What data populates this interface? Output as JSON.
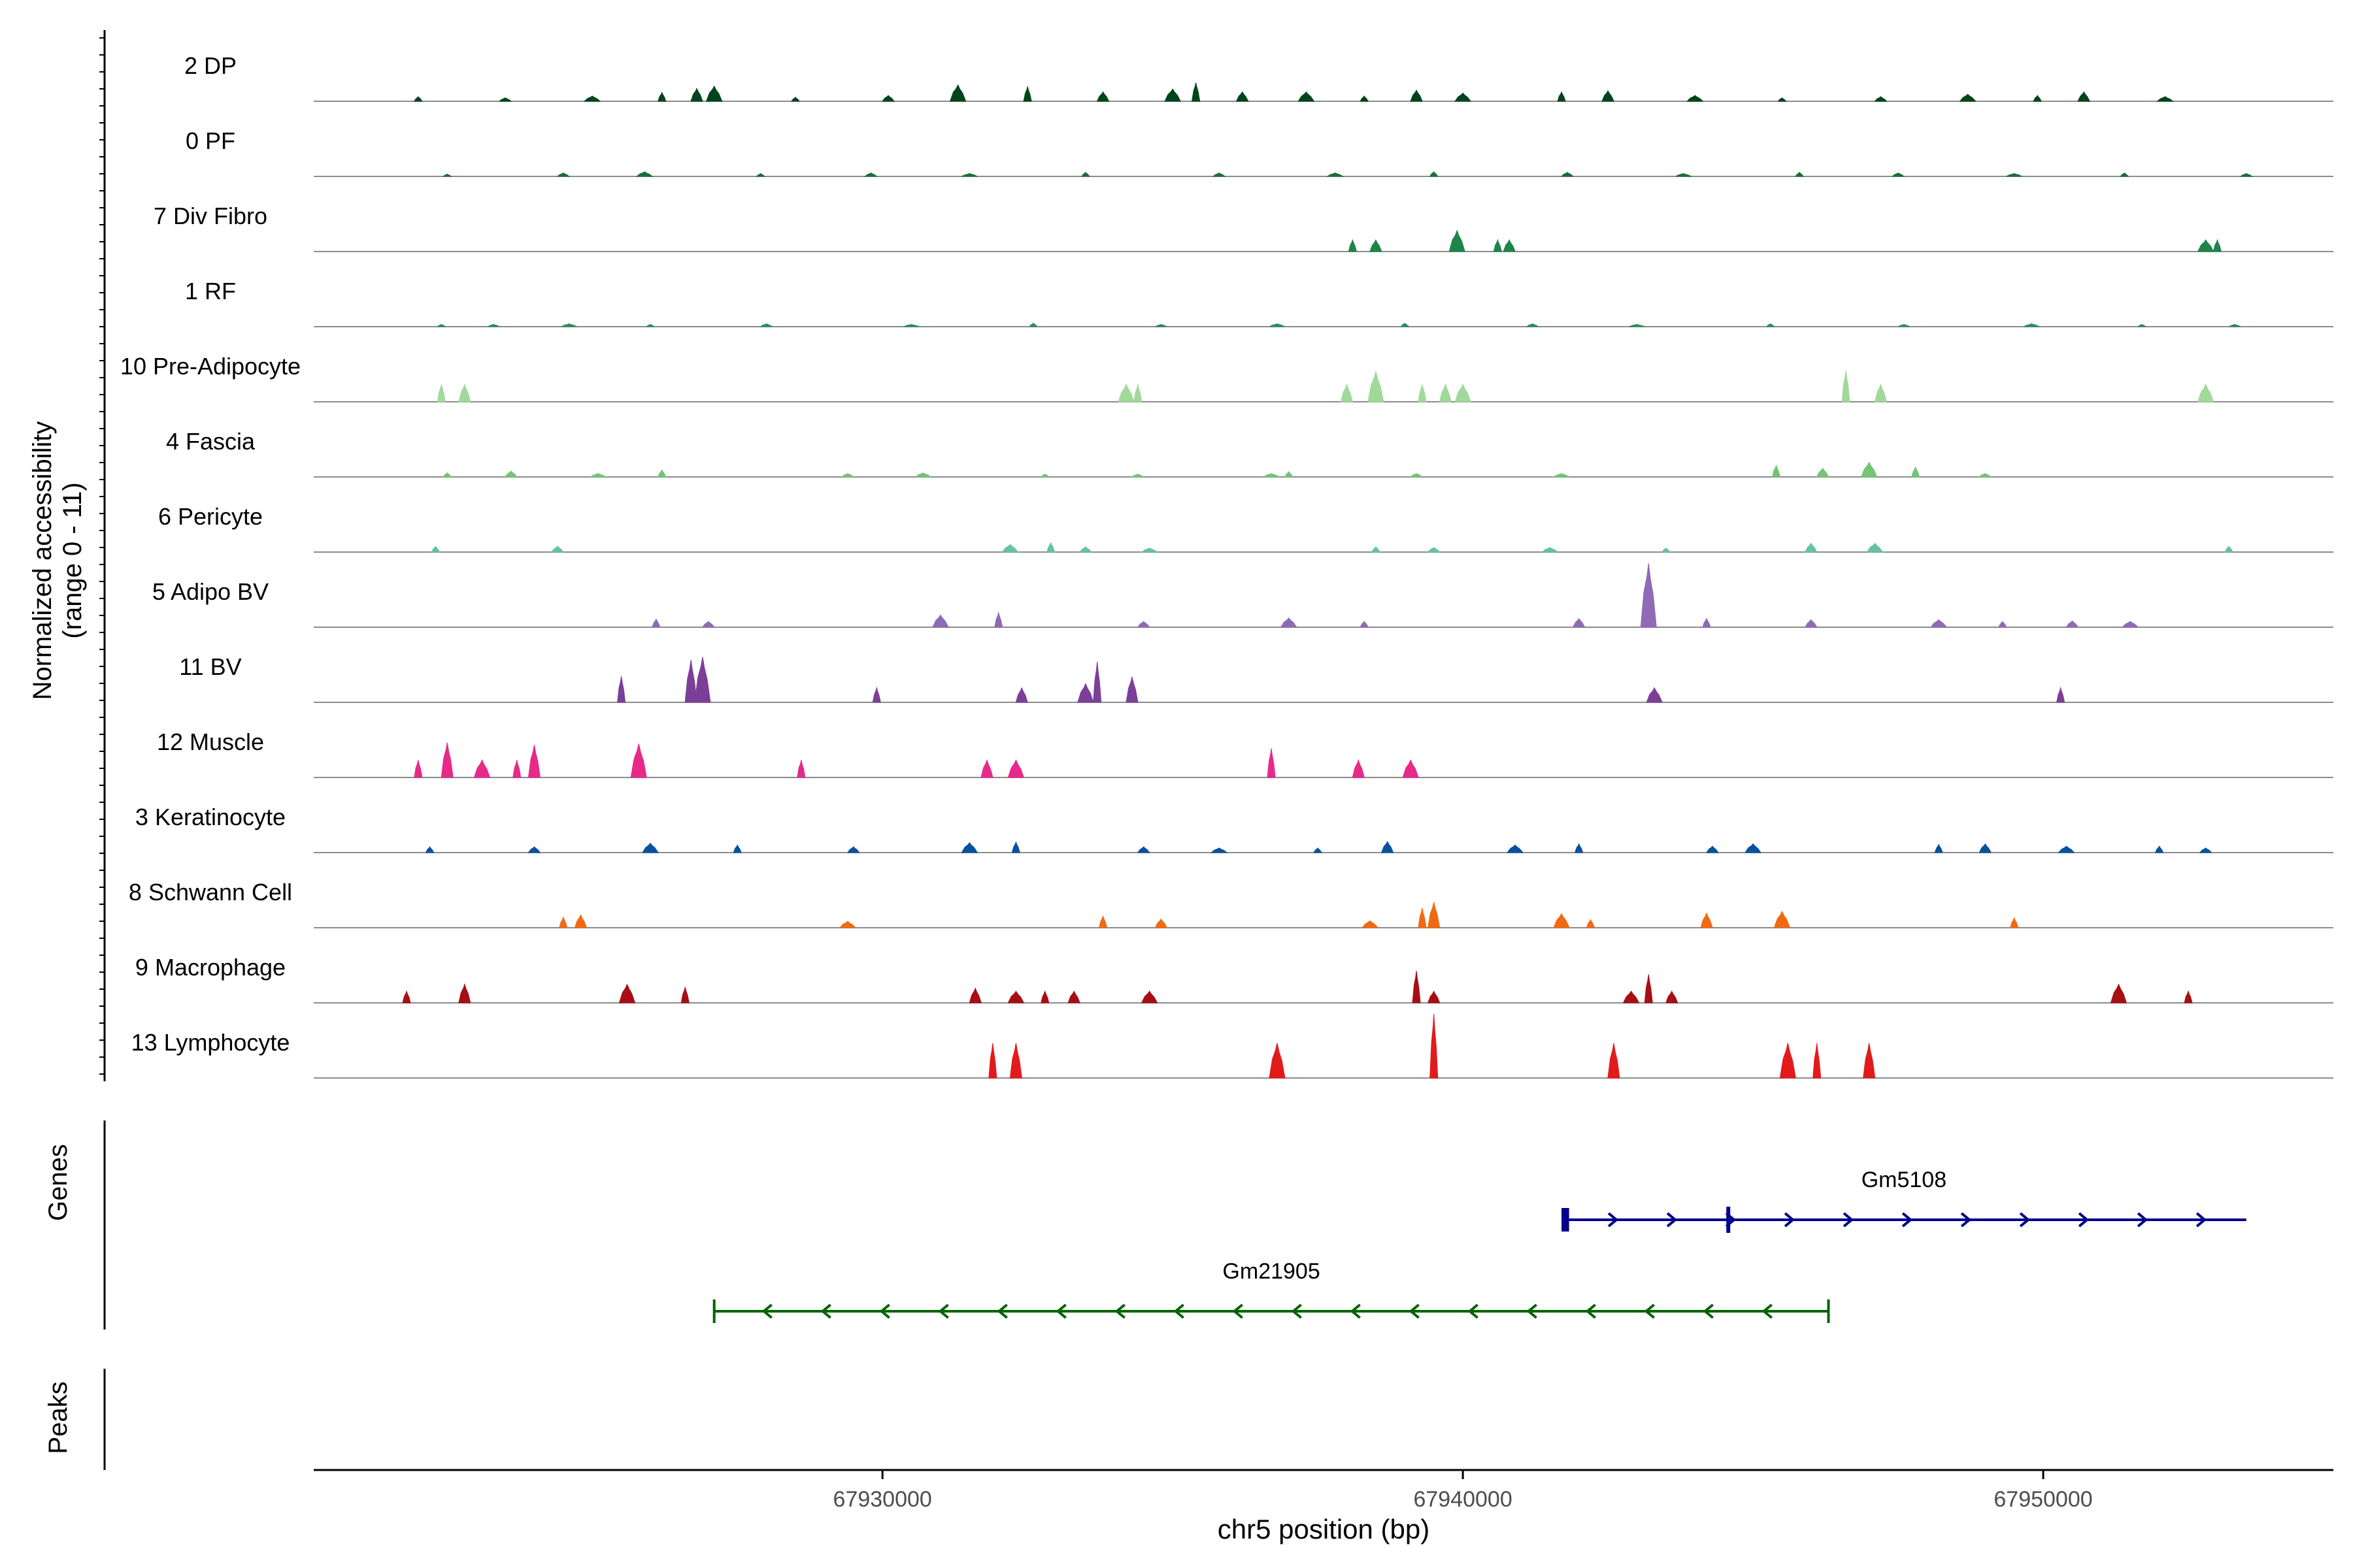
{
  "chart_data": {
    "type": "area",
    "title": "",
    "xlabel": "chr5 position (bp)",
    "ylabel_line1": "Normalized accessibility",
    "ylabel_line2": "(range 0 - 11)",
    "y_range": [
      0,
      11
    ],
    "xlim": [
      67920200,
      67955000
    ],
    "xticks": [
      67930000,
      67940000,
      67950000
    ],
    "xtick_labels": [
      "67930000",
      "67940000",
      "67950000"
    ],
    "tracks": [
      {
        "name": "2 DP",
        "color": "#00441B",
        "peaks": [
          [
            67922000,
            0.8
          ],
          [
            67923500,
            0.6
          ],
          [
            67925000,
            0.9
          ],
          [
            67926200,
            1.5
          ],
          [
            67926800,
            2.2
          ],
          [
            67927100,
            2.6
          ],
          [
            67928500,
            0.7
          ],
          [
            67930100,
            1.0
          ],
          [
            67931300,
            2.8
          ],
          [
            67932500,
            2.5
          ],
          [
            67933800,
            1.6
          ],
          [
            67935000,
            2.1
          ],
          [
            67935400,
            3.2
          ],
          [
            67936200,
            1.6
          ],
          [
            67937300,
            1.6
          ],
          [
            67938300,
            0.9
          ],
          [
            67939200,
            1.9
          ],
          [
            67940000,
            1.4
          ],
          [
            67941700,
            1.6
          ],
          [
            67942500,
            1.8
          ],
          [
            67944000,
            1.0
          ],
          [
            67945500,
            0.6
          ],
          [
            67947200,
            0.8
          ],
          [
            67948700,
            1.2
          ],
          [
            67949900,
            1.0
          ],
          [
            67950700,
            1.6
          ],
          [
            67952100,
            0.8
          ]
        ]
      },
      {
        "name": "0 PF",
        "color": "#1B6E38",
        "peaks": [
          [
            67922500,
            0.4
          ],
          [
            67924500,
            0.6
          ],
          [
            67925900,
            0.8
          ],
          [
            67927900,
            0.5
          ],
          [
            67929800,
            0.6
          ],
          [
            67931500,
            0.5
          ],
          [
            67933500,
            0.7
          ],
          [
            67935800,
            0.6
          ],
          [
            67937800,
            0.6
          ],
          [
            67939500,
            0.8
          ],
          [
            67941800,
            0.7
          ],
          [
            67943800,
            0.5
          ],
          [
            67945800,
            0.7
          ],
          [
            67947500,
            0.6
          ],
          [
            67949500,
            0.5
          ],
          [
            67951400,
            0.6
          ],
          [
            67953500,
            0.5
          ]
        ]
      },
      {
        "name": "7 Div Fibro",
        "color": "#1E8449",
        "peaks": [
          [
            67938100,
            2.0
          ],
          [
            67938500,
            2.0
          ],
          [
            67939900,
            3.6
          ],
          [
            67940600,
            2.0
          ],
          [
            67940800,
            2.0
          ],
          [
            67952800,
            2.0
          ],
          [
            67953000,
            2.0
          ]
        ]
      },
      {
        "name": "1 RF",
        "color": "#2E8B57",
        "peaks": [
          [
            67922400,
            0.4
          ],
          [
            67923300,
            0.4
          ],
          [
            67924600,
            0.5
          ],
          [
            67926000,
            0.4
          ],
          [
            67928000,
            0.5
          ],
          [
            67930500,
            0.4
          ],
          [
            67932600,
            0.6
          ],
          [
            67934800,
            0.4
          ],
          [
            67936800,
            0.5
          ],
          [
            67939000,
            0.6
          ],
          [
            67941200,
            0.5
          ],
          [
            67943000,
            0.4
          ],
          [
            67945300,
            0.5
          ],
          [
            67947600,
            0.4
          ],
          [
            67949800,
            0.5
          ],
          [
            67951700,
            0.4
          ],
          [
            67953300,
            0.4
          ]
        ]
      },
      {
        "name": "10 Pre-Adipocyte",
        "color": "#A1D99B",
        "peaks": [
          [
            67922400,
            3.0
          ],
          [
            67922800,
            3.0
          ],
          [
            67934200,
            3.0
          ],
          [
            67934400,
            3.0
          ],
          [
            67938000,
            3.0
          ],
          [
            67938500,
            5.2
          ],
          [
            67939300,
            3.0
          ],
          [
            67939700,
            3.0
          ],
          [
            67940000,
            3.0
          ],
          [
            67946600,
            5.4
          ],
          [
            67947200,
            3.0
          ],
          [
            67952800,
            3.0
          ]
        ]
      },
      {
        "name": "4 Fascia",
        "color": "#74C476",
        "peaks": [
          [
            67922500,
            0.7
          ],
          [
            67923600,
            1.0
          ],
          [
            67925100,
            0.6
          ],
          [
            67926200,
            1.2
          ],
          [
            67929400,
            0.6
          ],
          [
            67930700,
            0.7
          ],
          [
            67932800,
            0.5
          ],
          [
            67934400,
            0.5
          ],
          [
            67936700,
            0.6
          ],
          [
            67937000,
            0.9
          ],
          [
            67939200,
            0.6
          ],
          [
            67941700,
            0.6
          ],
          [
            67945400,
            2.0
          ],
          [
            67946200,
            1.5
          ],
          [
            67947000,
            2.5
          ],
          [
            67947800,
            1.7
          ],
          [
            67949000,
            0.6
          ]
        ]
      },
      {
        "name": "6 Pericyte",
        "color": "#66C2A5",
        "peaks": [
          [
            67922300,
            1.0
          ],
          [
            67924400,
            1.0
          ],
          [
            67932200,
            1.3
          ],
          [
            67932900,
            1.6
          ],
          [
            67933500,
            0.9
          ],
          [
            67934600,
            0.7
          ],
          [
            67938500,
            0.9
          ],
          [
            67939500,
            0.8
          ],
          [
            67941500,
            0.8
          ],
          [
            67943500,
            0.7
          ],
          [
            67946000,
            1.5
          ],
          [
            67947100,
            1.5
          ],
          [
            67953200,
            1.0
          ]
        ]
      },
      {
        "name": "5 Adipo BV",
        "color": "#8E6BB4",
        "peaks": [
          [
            67926100,
            1.4
          ],
          [
            67927000,
            1.0
          ],
          [
            67931000,
            2.1
          ],
          [
            67932000,
            2.5
          ],
          [
            67934500,
            1.0
          ],
          [
            67937000,
            1.6
          ],
          [
            67938300,
            1.0
          ],
          [
            67942000,
            1.5
          ],
          [
            67943200,
            11.0
          ],
          [
            67944200,
            1.5
          ],
          [
            67946000,
            1.3
          ],
          [
            67948200,
            1.3
          ],
          [
            67949300,
            1.0
          ],
          [
            67950500,
            1.1
          ],
          [
            67951500,
            1.0
          ]
        ]
      },
      {
        "name": "11 BV",
        "color": "#7B3F98",
        "peaks": [
          [
            67925500,
            4.5
          ],
          [
            67926700,
            7.3
          ],
          [
            67926900,
            7.8
          ],
          [
            67929900,
            2.5
          ],
          [
            67932400,
            2.5
          ],
          [
            67933500,
            3.2
          ],
          [
            67933700,
            7.0
          ],
          [
            67934300,
            4.4
          ],
          [
            67943300,
            2.5
          ],
          [
            67950300,
            2.5
          ]
        ]
      },
      {
        "name": "12 Muscle",
        "color": "#E7298A",
        "peaks": [
          [
            67922000,
            3.0
          ],
          [
            67922500,
            6.0
          ],
          [
            67923100,
            3.0
          ],
          [
            67923700,
            3.0
          ],
          [
            67924000,
            5.6
          ],
          [
            67925800,
            5.8
          ],
          [
            67928600,
            3.0
          ],
          [
            67931800,
            3.0
          ],
          [
            67932300,
            3.0
          ],
          [
            67936700,
            5.0
          ],
          [
            67938200,
            3.0
          ],
          [
            67939100,
            3.0
          ]
        ]
      },
      {
        "name": "3 Keratinocyte",
        "color": "#08519C",
        "peaks": [
          [
            67922200,
            1.0
          ],
          [
            67924000,
            1.0
          ],
          [
            67926000,
            1.6
          ],
          [
            67927500,
            1.3
          ],
          [
            67929500,
            1.0
          ],
          [
            67931500,
            1.7
          ],
          [
            67932300,
            1.8
          ],
          [
            67934500,
            1.0
          ],
          [
            67935800,
            0.8
          ],
          [
            67937500,
            0.8
          ],
          [
            67938700,
            1.9
          ],
          [
            67940900,
            1.3
          ],
          [
            67942000,
            1.5
          ],
          [
            67944300,
            1.1
          ],
          [
            67945000,
            1.5
          ],
          [
            67948200,
            1.4
          ],
          [
            67949000,
            1.5
          ],
          [
            67950400,
            1.1
          ],
          [
            67952000,
            1.1
          ],
          [
            67952800,
            0.8
          ]
        ]
      },
      {
        "name": "8 Schwann Cell",
        "color": "#F16913",
        "peaks": [
          [
            67924500,
            1.8
          ],
          [
            67924800,
            2.2
          ],
          [
            67929400,
            1.1
          ],
          [
            67933800,
            2.0
          ],
          [
            67934800,
            1.5
          ],
          [
            67938400,
            1.2
          ],
          [
            67939300,
            3.4
          ],
          [
            67939500,
            4.4
          ],
          [
            67941700,
            2.4
          ],
          [
            67942200,
            1.4
          ],
          [
            67944200,
            2.5
          ],
          [
            67945500,
            2.8
          ],
          [
            67949500,
            1.7
          ]
        ]
      },
      {
        "name": "9 Macrophage",
        "color": "#A50F15",
        "peaks": [
          [
            67921800,
            2.0
          ],
          [
            67922800,
            3.2
          ],
          [
            67925600,
            3.2
          ],
          [
            67926600,
            2.7
          ],
          [
            67931600,
            2.5
          ],
          [
            67932300,
            2.0
          ],
          [
            67932800,
            2.0
          ],
          [
            67933300,
            2.0
          ],
          [
            67934600,
            2.0
          ],
          [
            67939200,
            5.5
          ],
          [
            67939500,
            2.0
          ],
          [
            67942900,
            2.0
          ],
          [
            67943200,
            4.9
          ],
          [
            67943600,
            2.0
          ],
          [
            67951300,
            3.2
          ],
          [
            67952500,
            2.0
          ]
        ]
      },
      {
        "name": "13 Lymphocyte",
        "color": "#E31A1C",
        "peaks": [
          [
            67931900,
            6.0
          ],
          [
            67932300,
            6.0
          ],
          [
            67936800,
            6.0
          ],
          [
            67939500,
            11.0
          ],
          [
            67942600,
            6.0
          ],
          [
            67945600,
            6.0
          ],
          [
            67946100,
            6.0
          ],
          [
            67947000,
            6.0
          ]
        ]
      }
    ],
    "genes": [
      {
        "name": "Gm5108",
        "strand": "+",
        "start": 67941700,
        "end": 67953500,
        "color": "#00008B",
        "exons": [
          [
            67941700,
            67941830
          ],
          [
            67944540,
            67944570
          ]
        ]
      },
      {
        "name": "Gm21905",
        "strand": "-",
        "start": 67927100,
        "end": 67946300,
        "color": "#006400",
        "exons": []
      }
    ],
    "gene_track_label": "Genes",
    "peak_track_label": "Peaks"
  }
}
